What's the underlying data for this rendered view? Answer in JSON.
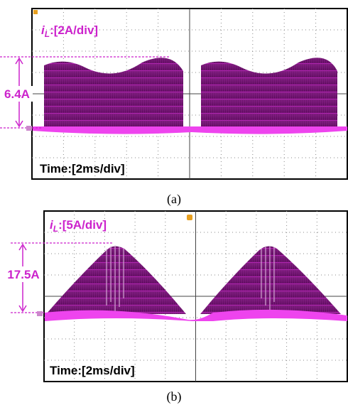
{
  "panels": [
    {
      "symbol": "i",
      "subscript": "L",
      "scale": ":[2A/div]",
      "amplitude": "6.4A",
      "time": "Time:[2ms/div]",
      "caption": "(a)"
    },
    {
      "symbol": "i",
      "subscript": "L",
      "scale": ":[5A/div]",
      "amplitude": "17.5A",
      "time": "Time:[2ms/div]",
      "caption": "(b)"
    }
  ]
}
